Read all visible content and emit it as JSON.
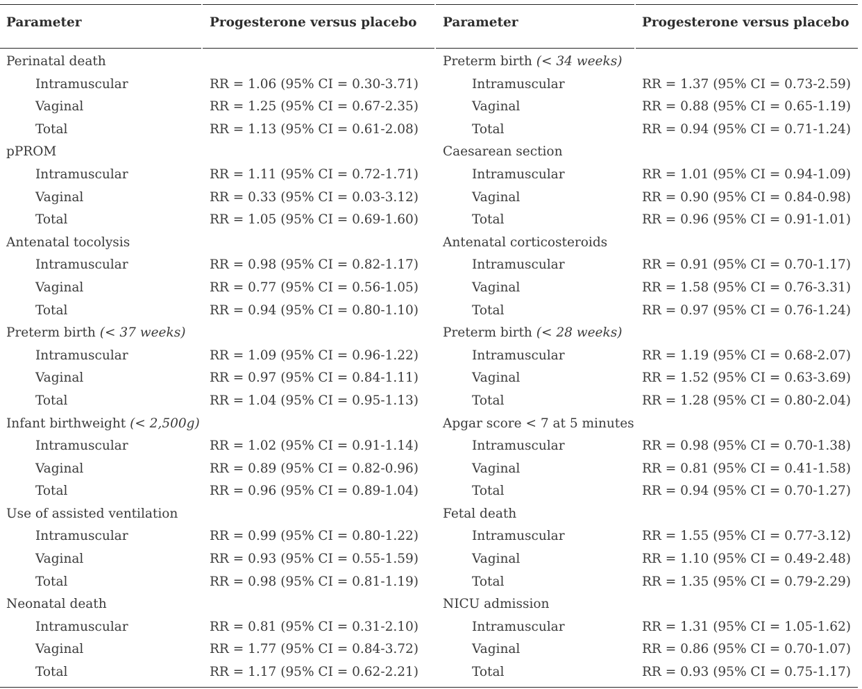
{
  "header": {
    "col1": "Parameter",
    "col2": "Progesterone versus placebo",
    "col3": "Parameter",
    "col4": "Progesterone versus placebo"
  },
  "rows": [
    {
      "l_label": "Perinatal death",
      "l_qual": "",
      "l_value": "",
      "l_sub": false,
      "r_label": "Preterm birth ",
      "r_qual": "(< 34 weeks)",
      "r_value": "",
      "r_sub": false
    },
    {
      "l_label": "Intramuscular",
      "l_qual": "",
      "l_value": "RR = 1.06 (95% CI = 0.30-3.71)",
      "l_sub": true,
      "r_label": "Intramuscular",
      "r_qual": "",
      "r_value": "RR = 1.37 (95% CI = 0.73-2.59)",
      "r_sub": true
    },
    {
      "l_label": "Vaginal",
      "l_qual": "",
      "l_value": "RR = 1.25 (95% CI = 0.67-2.35)",
      "l_sub": true,
      "r_label": "Vaginal",
      "r_qual": "",
      "r_value": "RR = 0.88 (95% CI = 0.65-1.19)",
      "r_sub": true
    },
    {
      "l_label": "Total",
      "l_qual": "",
      "l_value": "RR = 1.13 (95% CI = 0.61-2.08)",
      "l_sub": true,
      "r_label": "Total",
      "r_qual": "",
      "r_value": "RR = 0.94 (95% CI = 0.71-1.24)",
      "r_sub": true
    },
    {
      "l_label": "pPROM",
      "l_qual": "",
      "l_value": "",
      "l_sub": false,
      "r_label": "Caesarean section",
      "r_qual": "",
      "r_value": "",
      "r_sub": false
    },
    {
      "l_label": "Intramuscular",
      "l_qual": "",
      "l_value": "RR = 1.11 (95% CI = 0.72-1.71)",
      "l_sub": true,
      "r_label": "Intramuscular",
      "r_qual": "",
      "r_value": "RR = 1.01 (95% CI = 0.94-1.09)",
      "r_sub": true
    },
    {
      "l_label": "Vaginal",
      "l_qual": "",
      "l_value": "RR = 0.33 (95% CI = 0.03-3.12)",
      "l_sub": true,
      "r_label": "Vaginal",
      "r_qual": "",
      "r_value": "RR = 0.90 (95% CI = 0.84-0.98)",
      "r_sub": true
    },
    {
      "l_label": "Total",
      "l_qual": "",
      "l_value": "RR = 1.05 (95% CI = 0.69-1.60)",
      "l_sub": true,
      "r_label": "Total",
      "r_qual": "",
      "r_value": "RR = 0.96 (95% CI = 0.91-1.01)",
      "r_sub": true
    },
    {
      "l_label": "Antenatal tocolysis",
      "l_qual": "",
      "l_value": "",
      "l_sub": false,
      "r_label": "Antenatal corticosteroids",
      "r_qual": "",
      "r_value": "",
      "r_sub": false
    },
    {
      "l_label": "Intramuscular",
      "l_qual": "",
      "l_value": "RR = 0.98 (95% CI = 0.82-1.17)",
      "l_sub": true,
      "r_label": "Intramuscular",
      "r_qual": "",
      "r_value": "RR = 0.91 (95% CI = 0.70-1.17)",
      "r_sub": true
    },
    {
      "l_label": "Vaginal",
      "l_qual": "",
      "l_value": "RR = 0.77 (95% CI = 0.56-1.05)",
      "l_sub": true,
      "r_label": "Vaginal",
      "r_qual": "",
      "r_value": "RR = 1.58 (95% CI = 0.76-3.31)",
      "r_sub": true
    },
    {
      "l_label": "Total",
      "l_qual": "",
      "l_value": "RR = 0.94 (95% CI = 0.80-1.10)",
      "l_sub": true,
      "r_label": "Total",
      "r_qual": "",
      "r_value": "RR = 0.97 (95% CI = 0.76-1.24)",
      "r_sub": true
    },
    {
      "l_label": "Preterm birth ",
      "l_qual": "(< 37 weeks)",
      "l_value": "",
      "l_sub": false,
      "r_label": "Preterm birth ",
      "r_qual": "(< 28 weeks)",
      "r_value": "",
      "r_sub": false
    },
    {
      "l_label": "Intramuscular",
      "l_qual": "",
      "l_value": "RR = 1.09 (95% CI = 0.96-1.22)",
      "l_sub": true,
      "r_label": "Intramuscular",
      "r_qual": "",
      "r_value": "RR = 1.19 (95% CI = 0.68-2.07)",
      "r_sub": true
    },
    {
      "l_label": "Vaginal",
      "l_qual": "",
      "l_value": "RR = 0.97 (95% CI = 0.84-1.11)",
      "l_sub": true,
      "r_label": "Vaginal",
      "r_qual": "",
      "r_value": "RR = 1.52 (95% CI = 0.63-3.69)",
      "r_sub": true
    },
    {
      "l_label": "Total",
      "l_qual": "",
      "l_value": "RR = 1.04 (95% CI = 0.95-1.13)",
      "l_sub": true,
      "r_label": "Total",
      "r_qual": "",
      "r_value": "RR = 1.28 (95% CI = 0.80-2.04)",
      "r_sub": true
    },
    {
      "l_label": "Infant birthweight ",
      "l_qual": "(< 2,500g)",
      "l_value": "",
      "l_sub": false,
      "r_label": "Apgar score < 7 at 5 minutes",
      "r_qual": "",
      "r_value": "",
      "r_sub": false
    },
    {
      "l_label": "Intramuscular",
      "l_qual": "",
      "l_value": "RR = 1.02 (95% CI = 0.91-1.14)",
      "l_sub": true,
      "r_label": "Intramuscular",
      "r_qual": "",
      "r_value": "RR = 0.98 (95% CI = 0.70-1.38)",
      "r_sub": true
    },
    {
      "l_label": "Vaginal",
      "l_qual": "",
      "l_value": "RR = 0.89 (95% CI = 0.82-0.96)",
      "l_sub": true,
      "r_label": "Vaginal",
      "r_qual": "",
      "r_value": "RR = 0.81 (95% CI = 0.41-1.58)",
      "r_sub": true
    },
    {
      "l_label": "Total",
      "l_qual": "",
      "l_value": "RR = 0.96 (95% CI = 0.89-1.04)",
      "l_sub": true,
      "r_label": "Total",
      "r_qual": "",
      "r_value": "RR = 0.94 (95% CI = 0.70-1.27)",
      "r_sub": true
    },
    {
      "l_label": "Use of assisted ventilation",
      "l_qual": "",
      "l_value": "",
      "l_sub": false,
      "r_label": "Fetal death",
      "r_qual": "",
      "r_value": "",
      "r_sub": false
    },
    {
      "l_label": "Intramuscular",
      "l_qual": "",
      "l_value": "RR = 0.99 (95% CI = 0.80-1.22)",
      "l_sub": true,
      "r_label": "Intramuscular",
      "r_qual": "",
      "r_value": "RR = 1.55 (95% CI = 0.77-3.12)",
      "r_sub": true
    },
    {
      "l_label": "Vaginal",
      "l_qual": "",
      "l_value": "RR = 0.93 (95% CI = 0.55-1.59)",
      "l_sub": true,
      "r_label": "Vaginal",
      "r_qual": "",
      "r_value": "RR = 1.10 (95% CI = 0.49-2.48)",
      "r_sub": true
    },
    {
      "l_label": "Total",
      "l_qual": "",
      "l_value": "RR = 0.98 (95% CI = 0.81-1.19)",
      "l_sub": true,
      "r_label": "Total",
      "r_qual": "",
      "r_value": "RR = 1.35 (95% CI = 0.79-2.29)",
      "r_sub": true
    },
    {
      "l_label": "Neonatal death",
      "l_qual": "",
      "l_value": "",
      "l_sub": false,
      "r_label": "NICU admission",
      "r_qual": "",
      "r_value": "",
      "r_sub": false
    },
    {
      "l_label": "Intramuscular",
      "l_qual": "",
      "l_value": "RR = 0.81 (95% CI = 0.31-2.10)",
      "l_sub": true,
      "r_label": "Intramuscular",
      "r_qual": "",
      "r_value": "RR = 1.31 (95% CI = 1.05-1.62)",
      "r_sub": true
    },
    {
      "l_label": "Vaginal",
      "l_qual": "",
      "l_value": "RR = 1.77 (95% CI = 0.84-3.72)",
      "l_sub": true,
      "r_label": "Vaginal",
      "r_qual": "",
      "r_value": "RR = 0.86 (95% CI = 0.70-1.07)",
      "r_sub": true
    },
    {
      "l_label": "Total",
      "l_qual": "",
      "l_value": "RR = 1.17 (95% CI = 0.62-2.21)",
      "l_sub": true,
      "r_label": "Total",
      "r_qual": "",
      "r_value": "RR = 0.93 (95% CI = 0.75-1.17)",
      "r_sub": true
    }
  ]
}
